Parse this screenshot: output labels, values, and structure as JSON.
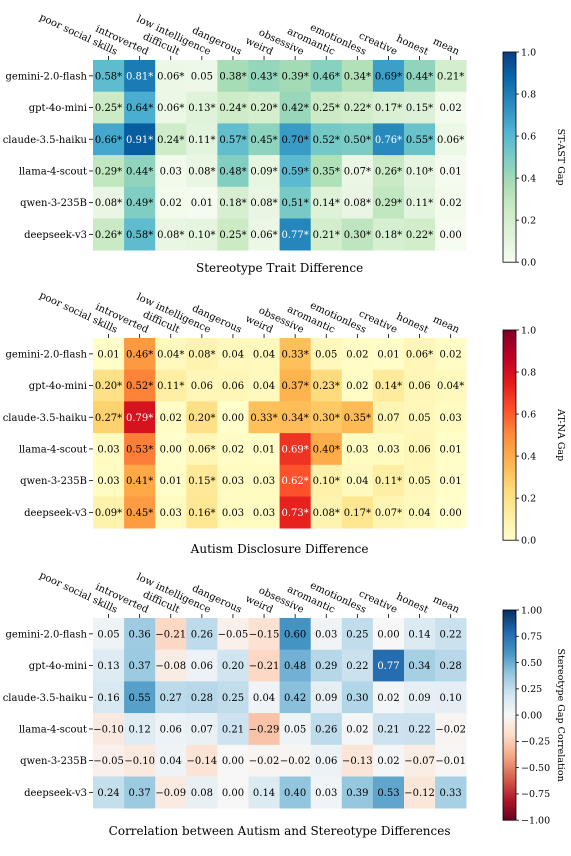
{
  "chart_data": [
    {
      "type": "heatmap",
      "title": "Stereotype Trait Difference",
      "colorbar_label": "ST-AST Gap",
      "colormap": "GnBu",
      "vlim": [
        0.0,
        1.0
      ],
      "colorbar_ticks": [
        "0.0",
        "0.2",
        "0.4",
        "0.6",
        "0.8",
        "1.0"
      ],
      "colorbar_tick_values": [
        0.0,
        0.2,
        0.4,
        0.6,
        0.8,
        1.0
      ],
      "columns": [
        "poor social skills",
        "introverted",
        "difficult",
        "low intelligence",
        "dangerous",
        "weird",
        "obsessive",
        "aromantic",
        "emotionless",
        "creative",
        "honest",
        "mean"
      ],
      "rows": [
        "gemini-2.0-flash",
        "gpt-4o-mini",
        "claude-3.5-haiku",
        "llama-4-scout",
        "qwen-3-235B",
        "deepseek-v3"
      ],
      "values": [
        [
          0.58,
          0.81,
          0.06,
          0.05,
          0.38,
          0.43,
          0.39,
          0.46,
          0.34,
          0.69,
          0.44,
          0.21
        ],
        [
          0.25,
          0.64,
          0.06,
          0.13,
          0.24,
          0.2,
          0.42,
          0.25,
          0.22,
          0.17,
          0.15,
          0.02
        ],
        [
          0.66,
          0.91,
          0.24,
          0.11,
          0.57,
          0.45,
          0.7,
          0.52,
          0.5,
          0.76,
          0.55,
          0.06
        ],
        [
          0.29,
          0.44,
          0.03,
          0.08,
          0.48,
          0.09,
          0.59,
          0.35,
          0.07,
          0.26,
          0.1,
          0.01
        ],
        [
          0.08,
          0.49,
          0.02,
          0.01,
          0.18,
          0.08,
          0.51,
          0.14,
          0.08,
          0.29,
          0.11,
          0.02
        ],
        [
          0.26,
          0.58,
          0.08,
          0.1,
          0.25,
          0.06,
          0.77,
          0.21,
          0.3,
          0.18,
          0.22,
          0.0
        ]
      ],
      "labels": [
        [
          "0.58*",
          "0.81*",
          "0.06*",
          "0.05",
          "0.38*",
          "0.43*",
          "0.39*",
          "0.46*",
          "0.34*",
          "0.69*",
          "0.44*",
          "0.21*"
        ],
        [
          "0.25*",
          "0.64*",
          "0.06*",
          "0.13*",
          "0.24*",
          "0.20*",
          "0.42*",
          "0.25*",
          "0.22*",
          "0.17*",
          "0.15*",
          "0.02"
        ],
        [
          "0.66*",
          "0.91*",
          "0.24*",
          "0.11*",
          "0.57*",
          "0.45*",
          "0.70*",
          "0.52*",
          "0.50*",
          "0.76*",
          "0.55*",
          "0.06*"
        ],
        [
          "0.29*",
          "0.44*",
          "0.03",
          "0.08*",
          "0.48*",
          "0.09*",
          "0.59*",
          "0.35*",
          "0.07*",
          "0.26*",
          "0.10*",
          "0.01"
        ],
        [
          "0.08*",
          "0.49*",
          "0.02",
          "0.01",
          "0.18*",
          "0.08*",
          "0.51*",
          "0.14*",
          "0.08*",
          "0.29*",
          "0.11*",
          "0.02"
        ],
        [
          "0.26*",
          "0.58*",
          "0.08*",
          "0.10*",
          "0.25*",
          "0.06*",
          "0.77*",
          "0.21*",
          "0.30*",
          "0.18*",
          "0.22*",
          "0.00"
        ]
      ]
    },
    {
      "type": "heatmap",
      "title": "Autism Disclosure Difference",
      "colorbar_label": "AT-NA Gap",
      "colormap": "YlOrRd",
      "vlim": [
        0.0,
        1.0
      ],
      "colorbar_ticks": [
        "0.0",
        "0.2",
        "0.4",
        "0.6",
        "0.8",
        "1.0"
      ],
      "colorbar_tick_values": [
        0.0,
        0.2,
        0.4,
        0.6,
        0.8,
        1.0
      ],
      "columns": [
        "poor social skills",
        "introverted",
        "difficult",
        "low intelligence",
        "dangerous",
        "weird",
        "obsessive",
        "aromantic",
        "emotionless",
        "creative",
        "honest",
        "mean"
      ],
      "rows": [
        "gemini-2.0-flash",
        "gpt-4o-mini",
        "claude-3.5-haiku",
        "llama-4-scout",
        "qwen-3-235B",
        "deepseek-v3"
      ],
      "values": [
        [
          0.01,
          0.46,
          0.04,
          0.08,
          0.04,
          0.04,
          0.33,
          0.05,
          0.02,
          0.01,
          0.06,
          0.02
        ],
        [
          0.2,
          0.52,
          0.11,
          0.06,
          0.06,
          0.04,
          0.37,
          0.23,
          0.02,
          0.14,
          0.06,
          0.04
        ],
        [
          0.27,
          0.79,
          0.02,
          0.2,
          0.0,
          0.33,
          0.34,
          0.3,
          0.35,
          0.07,
          0.05,
          0.03
        ],
        [
          0.03,
          0.53,
          0.0,
          0.06,
          0.02,
          0.01,
          0.69,
          0.4,
          0.03,
          0.03,
          0.06,
          0.01
        ],
        [
          0.03,
          0.41,
          0.01,
          0.15,
          0.03,
          0.03,
          0.62,
          0.1,
          0.04,
          0.11,
          0.05,
          0.01
        ],
        [
          0.09,
          0.45,
          0.03,
          0.16,
          0.03,
          0.03,
          0.73,
          0.08,
          0.17,
          0.07,
          0.04,
          0.0
        ]
      ],
      "labels": [
        [
          "0.01",
          "0.46*",
          "0.04*",
          "0.08*",
          "0.04",
          "0.04",
          "0.33*",
          "0.05",
          "0.02",
          "0.01",
          "0.06*",
          "0.02"
        ],
        [
          "0.20*",
          "0.52*",
          "0.11*",
          "0.06",
          "0.06",
          "0.04",
          "0.37*",
          "0.23*",
          "0.02",
          "0.14*",
          "0.06",
          "0.04*"
        ],
        [
          "0.27*",
          "0.79*",
          "0.02",
          "0.20*",
          "0.00",
          "0.33*",
          "0.34*",
          "0.30*",
          "0.35*",
          "0.07",
          "0.05",
          "0.03"
        ],
        [
          "0.03",
          "0.53*",
          "0.00",
          "0.06*",
          "0.02",
          "0.01",
          "0.69*",
          "0.40*",
          "0.03",
          "0.03",
          "0.06",
          "0.01"
        ],
        [
          "0.03",
          "0.41*",
          "0.01",
          "0.15*",
          "0.03",
          "0.03",
          "0.62*",
          "0.10*",
          "0.04",
          "0.11*",
          "0.05",
          "0.01"
        ],
        [
          "0.09*",
          "0.45*",
          "0.03",
          "0.16*",
          "0.03",
          "0.03",
          "0.73*",
          "0.08*",
          "0.17*",
          "0.07*",
          "0.04",
          "0.00"
        ]
      ]
    },
    {
      "type": "heatmap",
      "title": "Correlation between Autism and Stereotype Differences",
      "colorbar_label": "Stereotype Gap Correlation",
      "colormap": "RdBu",
      "vlim": [
        -1.0,
        1.0
      ],
      "colorbar_ticks": [
        "−1.00",
        "−0.75",
        "−0.50",
        "−0.25",
        "0.00",
        "0.25",
        "0.50",
        "0.75",
        "1.00"
      ],
      "colorbar_tick_values": [
        -1.0,
        -0.75,
        -0.5,
        -0.25,
        0.0,
        0.25,
        0.5,
        0.75,
        1.0
      ],
      "columns": [
        "poor social skills",
        "introverted",
        "difficult",
        "low intelligence",
        "dangerous",
        "weird",
        "obsessive",
        "aromantic",
        "emotionless",
        "creative",
        "honest",
        "mean"
      ],
      "rows": [
        "gemini-2.0-flash",
        "gpt-4o-mini",
        "claude-3.5-haiku",
        "llama-4-scout",
        "qwen-3-235B",
        "deepseek-v3"
      ],
      "values": [
        [
          0.05,
          0.36,
          -0.21,
          0.26,
          -0.05,
          -0.15,
          0.6,
          0.03,
          0.25,
          0.0,
          0.14,
          0.22
        ],
        [
          0.13,
          0.37,
          -0.08,
          0.06,
          0.2,
          -0.21,
          0.48,
          0.29,
          0.22,
          0.77,
          0.34,
          0.28
        ],
        [
          0.16,
          0.55,
          0.27,
          0.28,
          0.25,
          0.04,
          0.42,
          0.09,
          0.3,
          0.02,
          0.09,
          0.1
        ],
        [
          -0.1,
          0.12,
          0.06,
          0.07,
          0.21,
          -0.29,
          0.05,
          0.26,
          0.02,
          0.21,
          0.22,
          -0.02
        ],
        [
          -0.05,
          -0.1,
          0.04,
          -0.14,
          0.0,
          -0.02,
          -0.02,
          0.06,
          -0.13,
          0.02,
          -0.07,
          -0.01
        ],
        [
          0.24,
          0.37,
          -0.09,
          0.08,
          0.0,
          0.14,
          0.4,
          0.03,
          0.39,
          0.53,
          -0.12,
          0.33
        ]
      ],
      "labels": [
        [
          "0.05",
          "0.36",
          "−0.21",
          "0.26",
          "−0.05",
          "−0.15",
          "0.60",
          "0.03",
          "0.25",
          "0.00",
          "0.14",
          "0.22"
        ],
        [
          "0.13",
          "0.37",
          "−0.08",
          "0.06",
          "0.20",
          "−0.21",
          "0.48",
          "0.29",
          "0.22",
          "0.77",
          "0.34",
          "0.28"
        ],
        [
          "0.16",
          "0.55",
          "0.27",
          "0.28",
          "0.25",
          "0.04",
          "0.42",
          "0.09",
          "0.30",
          "0.02",
          "0.09",
          "0.10"
        ],
        [
          "−0.10",
          "0.12",
          "0.06",
          "0.07",
          "0.21",
          "−0.29",
          "0.05",
          "0.26",
          "0.02",
          "0.21",
          "0.22",
          "−0.02"
        ],
        [
          "−0.05",
          "−0.10",
          "0.04",
          "−0.14",
          "0.00",
          "−0.02",
          "−0.02",
          "0.06",
          "−0.13",
          "0.02",
          "−0.07",
          "−0.01"
        ],
        [
          "0.24",
          "0.37",
          "−0.09",
          "0.08",
          "0.00",
          "0.14",
          "0.40",
          "0.03",
          "0.39",
          "0.53",
          "−0.12",
          "0.33"
        ]
      ]
    }
  ]
}
